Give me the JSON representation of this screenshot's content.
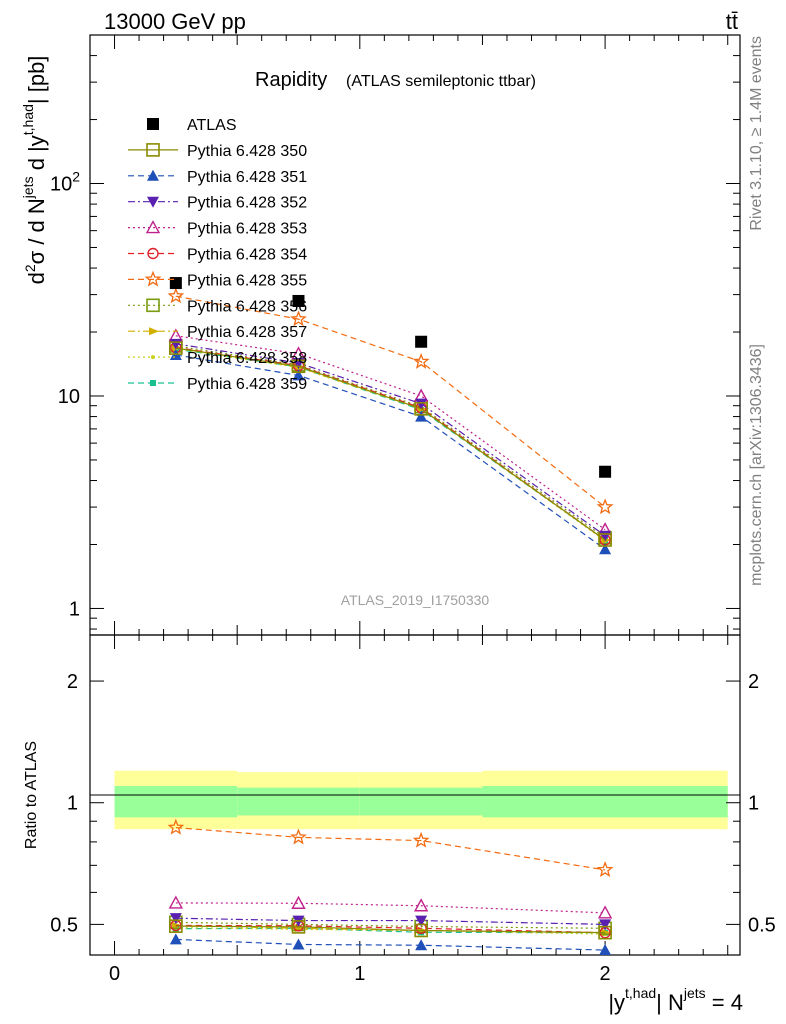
{
  "header": {
    "energy_label": "13000 GeV pp",
    "process_label": "tt̄"
  },
  "side": {
    "rivet_label": "Rivet 3.1.10, ≥ 1.4M events",
    "source_label": "mcplots.cern.ch [arXiv:1306.3436]"
  },
  "analysis_label": "ATLAS_2019_I1750330",
  "chart_data": [
    {
      "type": "scatter",
      "title": "Rapidity",
      "subtitle": "(ATLAS semileptonic ttbar)",
      "ylabel": "d²σ / d N^jets d |y^t,had| [pb]",
      "xlabel": "|y^t,had| N^jets = 4",
      "yscale": "log",
      "xlim": [
        -0.1,
        2.55
      ],
      "ylim": [
        0.75,
        500
      ],
      "x": [
        0.25,
        0.75,
        1.25,
        2.0
      ],
      "yticks": [
        "1",
        "10",
        "10^2"
      ],
      "xticks": [
        "0",
        "1",
        "2"
      ],
      "legend_placement": "top-left",
      "series": [
        {
          "name": "ATLAS",
          "marker": "square-filled",
          "line": "none",
          "color": "#000000",
          "values": [
            34,
            28,
            18,
            4.4
          ]
        },
        {
          "name": "Pythia 6.428 350",
          "marker": "square-open",
          "line": "solid",
          "color": "#8a8a00",
          "values": [
            16.8,
            13.8,
            8.7,
            2.1
          ]
        },
        {
          "name": "Pythia 6.428 351",
          "marker": "triangle-up-filled",
          "line": "dashed",
          "color": "#1f4fb8",
          "values": [
            15.6,
            12.5,
            8.0,
            1.9
          ]
        },
        {
          "name": "Pythia 6.428 352",
          "marker": "triangle-down-filled",
          "line": "dashdot",
          "color": "#5a20b0",
          "values": [
            17.6,
            14.3,
            9.2,
            2.2
          ]
        },
        {
          "name": "Pythia 6.428 353",
          "marker": "triangle-up-open",
          "line": "dotted",
          "color": "#c0208c",
          "values": [
            19.2,
            15.8,
            10.0,
            2.35
          ]
        },
        {
          "name": "Pythia 6.428 354",
          "marker": "circle-open",
          "line": "dashed",
          "color": "#e0202a",
          "values": [
            16.9,
            13.9,
            8.8,
            2.1
          ]
        },
        {
          "name": "Pythia 6.428 355",
          "marker": "star-open",
          "line": "dashed",
          "color": "#f26b10",
          "values": [
            29.5,
            23.0,
            14.5,
            3.0
          ]
        },
        {
          "name": "Pythia 6.428 356",
          "marker": "square-open",
          "line": "dotted",
          "color": "#7a9a10",
          "values": [
            17.2,
            14.0,
            8.9,
            2.15
          ]
        },
        {
          "name": "Pythia 6.428 357",
          "marker": "triangle-right",
          "line": "dashdot",
          "color": "#d2b000",
          "values": [
            16.9,
            13.7,
            8.7,
            2.1
          ]
        },
        {
          "name": "Pythia 6.428 358",
          "marker": "dot",
          "line": "dotted",
          "color": "#c8d020",
          "values": [
            16.7,
            13.6,
            8.7,
            2.08
          ]
        },
        {
          "name": "Pythia 6.428 359",
          "marker": "square-small",
          "line": "dashed",
          "color": "#18c090",
          "values": [
            16.6,
            13.7,
            8.6,
            2.1
          ]
        }
      ]
    },
    {
      "type": "scatter",
      "title": "",
      "ylabel": "Ratio to ATLAS",
      "xlabel": "|y^t,had| N^jets = 4",
      "yscale": "log",
      "xlim": [
        -0.1,
        2.55
      ],
      "ylim": [
        0.42,
        2.6
      ],
      "yticks": [
        "0.5",
        "1",
        "2"
      ],
      "xticks": [
        "0",
        "1",
        "2"
      ],
      "x": [
        0.25,
        0.75,
        1.25,
        2.0
      ],
      "uncertainty_bands": {
        "x_edges": [
          0,
          0.5,
          1.0,
          1.5,
          2.5
        ],
        "outer_low": [
          0.86,
          0.86,
          0.86,
          0.86
        ],
        "outer_high": [
          1.2,
          1.19,
          1.19,
          1.2
        ],
        "inner_low": [
          0.92,
          0.93,
          0.93,
          0.92
        ],
        "inner_high": [
          1.1,
          1.09,
          1.09,
          1.1
        ],
        "outer_color": "#ffff99",
        "inner_color": "#99ff99"
      },
      "series": [
        {
          "name": "Pythia 6.428 350",
          "values": [
            0.495,
            0.493,
            0.483,
            0.477
          ]
        },
        {
          "name": "Pythia 6.428 351",
          "values": [
            0.459,
            0.446,
            0.444,
            0.432
          ]
        },
        {
          "name": "Pythia 6.428 352",
          "values": [
            0.518,
            0.511,
            0.511,
            0.5
          ]
        },
        {
          "name": "Pythia 6.428 353",
          "values": [
            0.565,
            0.564,
            0.556,
            0.534
          ]
        },
        {
          "name": "Pythia 6.428 354",
          "values": [
            0.497,
            0.496,
            0.489,
            0.477
          ]
        },
        {
          "name": "Pythia 6.428 355",
          "values": [
            0.868,
            0.821,
            0.806,
            0.682
          ]
        },
        {
          "name": "Pythia 6.428 356",
          "values": [
            0.506,
            0.5,
            0.494,
            0.489
          ]
        },
        {
          "name": "Pythia 6.428 357",
          "values": [
            0.497,
            0.489,
            0.483,
            0.477
          ]
        },
        {
          "name": "Pythia 6.428 358",
          "values": [
            0.491,
            0.486,
            0.483,
            0.473
          ]
        },
        {
          "name": "Pythia 6.428 359",
          "values": [
            0.488,
            0.489,
            0.478,
            0.477
          ]
        }
      ]
    }
  ]
}
